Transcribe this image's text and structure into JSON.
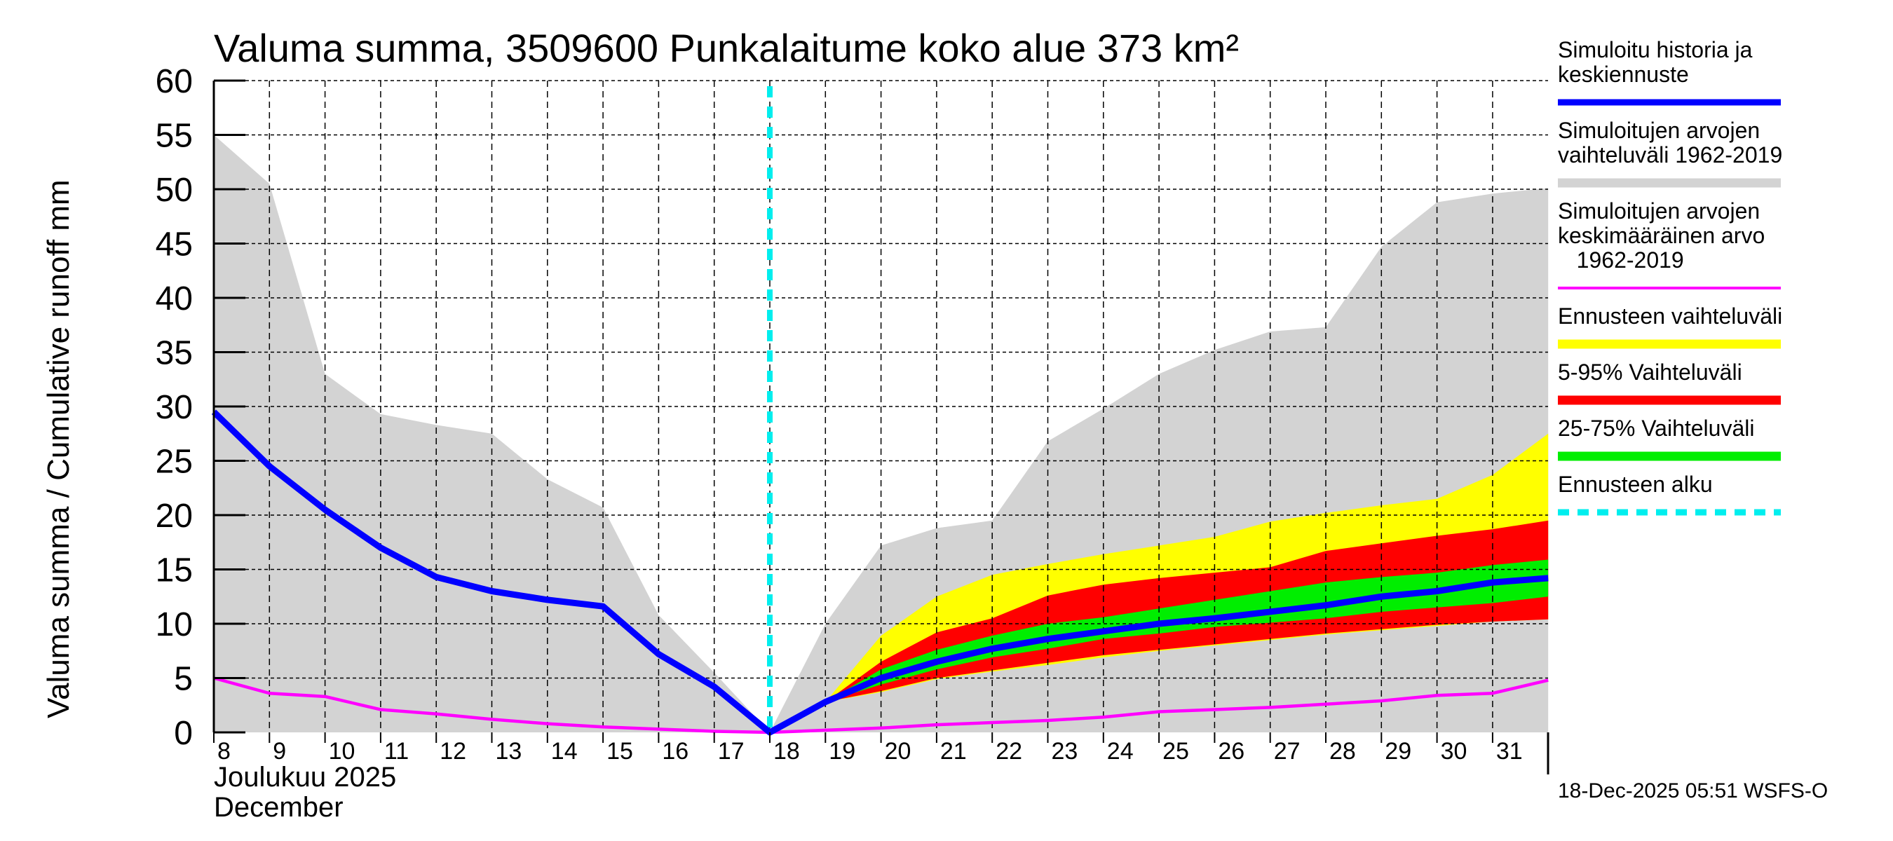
{
  "chart_data": {
    "type": "area",
    "title": "Valuma summa, 3509600 Punkalaitume koko alue 373 km²",
    "ylabel": "Valuma summa / Cumulative runoff    mm",
    "xlabel_lines": [
      "Joulukuu  2025",
      "December"
    ],
    "ylim": [
      0,
      60
    ],
    "yticks": [
      0,
      5,
      10,
      15,
      20,
      25,
      30,
      35,
      40,
      45,
      50,
      55,
      60
    ],
    "xlim": [
      8,
      32
    ],
    "xticks": [
      8,
      9,
      10,
      11,
      12,
      13,
      14,
      15,
      16,
      17,
      18,
      19,
      20,
      21,
      22,
      23,
      24,
      25,
      26,
      27,
      28,
      29,
      30,
      31
    ],
    "grid": true,
    "legend_position": "right",
    "forecast_start_day": 18,
    "days": [
      8,
      9,
      10,
      11,
      12,
      13,
      14,
      15,
      16,
      17,
      18,
      19,
      20,
      21,
      22,
      23,
      24,
      25,
      26,
      27,
      28,
      29,
      30,
      31,
      32
    ],
    "series": [
      {
        "name": "Simuloitujen arvojen vaihteluväli 1962-2019",
        "kind": "band",
        "color": "#d3d3d3",
        "low": [
          0,
          0,
          0,
          0,
          0,
          0,
          0,
          0,
          0,
          0,
          0,
          0,
          0,
          0,
          0,
          0,
          0,
          0,
          0,
          0,
          0,
          0,
          0,
          0,
          0
        ],
        "high": [
          55,
          50.5,
          33,
          29.3,
          28.3,
          27.5,
          23.3,
          20.7,
          10.8,
          5.5,
          0,
          10,
          17.2,
          18.8,
          19.5,
          26.8,
          29.8,
          33,
          35.2,
          36.9,
          37.3,
          44.7,
          48.8,
          49.6,
          50.1
        ]
      },
      {
        "name": "Ennusteen vaihteluväli",
        "kind": "band",
        "color": "#ffff00",
        "start_day": 18,
        "low": [
          0,
          2.8,
          3.7,
          4.9,
          5.6,
          6.2,
          6.9,
          7.5,
          8.0,
          8.5,
          9.0,
          9.4,
          9.8,
          10.2,
          10.4
        ],
        "high": [
          0,
          2.8,
          8.9,
          12.5,
          14.5,
          15.5,
          16.4,
          17.2,
          18.0,
          19.4,
          20.2,
          20.9,
          21.5,
          23.7,
          27.5
        ]
      },
      {
        "name": "5-95% Vaihteluväli",
        "kind": "band",
        "color": "#ff0000",
        "start_day": 18,
        "low": [
          0,
          2.8,
          3.8,
          5.0,
          5.7,
          6.4,
          7.1,
          7.6,
          8.1,
          8.6,
          9.1,
          9.5,
          9.9,
          10.2,
          10.4
        ],
        "high": [
          0,
          2.8,
          6.5,
          9.2,
          10.5,
          12.6,
          13.6,
          14.2,
          14.7,
          15.2,
          16.7,
          17.4,
          18.1,
          18.7,
          19.5
        ]
      },
      {
        "name": "25-75% Vaihteluväli",
        "kind": "band",
        "color": "#00ee00",
        "start_day": 18,
        "low": [
          0,
          2.8,
          4.4,
          5.8,
          6.9,
          7.7,
          8.6,
          9.1,
          9.7,
          10.1,
          10.5,
          11.1,
          11.5,
          11.9,
          12.5
        ],
        "high": [
          0,
          2.8,
          5.8,
          7.6,
          8.9,
          10.0,
          10.6,
          11.4,
          12.2,
          13.0,
          13.8,
          14.3,
          14.7,
          15.4,
          15.9
        ]
      },
      {
        "name": "Simuloitujen arvojen keskimääräinen arvo 1962-2019",
        "kind": "line",
        "color": "#ff00ff",
        "values": [
          5,
          3.6,
          3.3,
          2.1,
          1.7,
          1.2,
          0.8,
          0.5,
          0.3,
          0.1,
          0,
          0.2,
          0.4,
          0.7,
          0.9,
          1.1,
          1.4,
          1.9,
          2.1,
          2.3,
          2.6,
          2.9,
          3.4,
          3.6,
          4.8
        ]
      },
      {
        "name": "Simuloitu historia ja keskiennuste",
        "kind": "line",
        "color": "#0000ff",
        "values": [
          29.5,
          24.5,
          20.5,
          17,
          14.3,
          13,
          12.2,
          11.6,
          7.2,
          4.2,
          0,
          2.8,
          5,
          6.5,
          7.7,
          8.6,
          9.3,
          10,
          10.5,
          11.1,
          11.7,
          12.5,
          13,
          13.8,
          14.2
        ]
      }
    ],
    "legend": [
      {
        "label": "Simuloitu historia ja\nkeskiennuste",
        "color": "#0000ff",
        "style": "line"
      },
      {
        "label": "Simuloitujen arvojen\nvaihteluväli 1962-2019",
        "color": "#d3d3d3",
        "style": "band"
      },
      {
        "label": "Simuloitujen arvojen\nkeskimääräinen arvo\n   1962-2019",
        "color": "#ff00ff",
        "style": "thin"
      },
      {
        "label": "Ennusteen vaihteluväli",
        "color": "#ffff00",
        "style": "band"
      },
      {
        "label": "5-95% Vaihteluväli",
        "color": "#ff0000",
        "style": "band"
      },
      {
        "label": "25-75% Vaihteluväli",
        "color": "#00ee00",
        "style": "band"
      },
      {
        "label": "Ennusteen alku",
        "color": "#00eeee",
        "style": "dashed"
      }
    ],
    "footer": "18-Dec-2025 05:51 WSFS-O"
  }
}
